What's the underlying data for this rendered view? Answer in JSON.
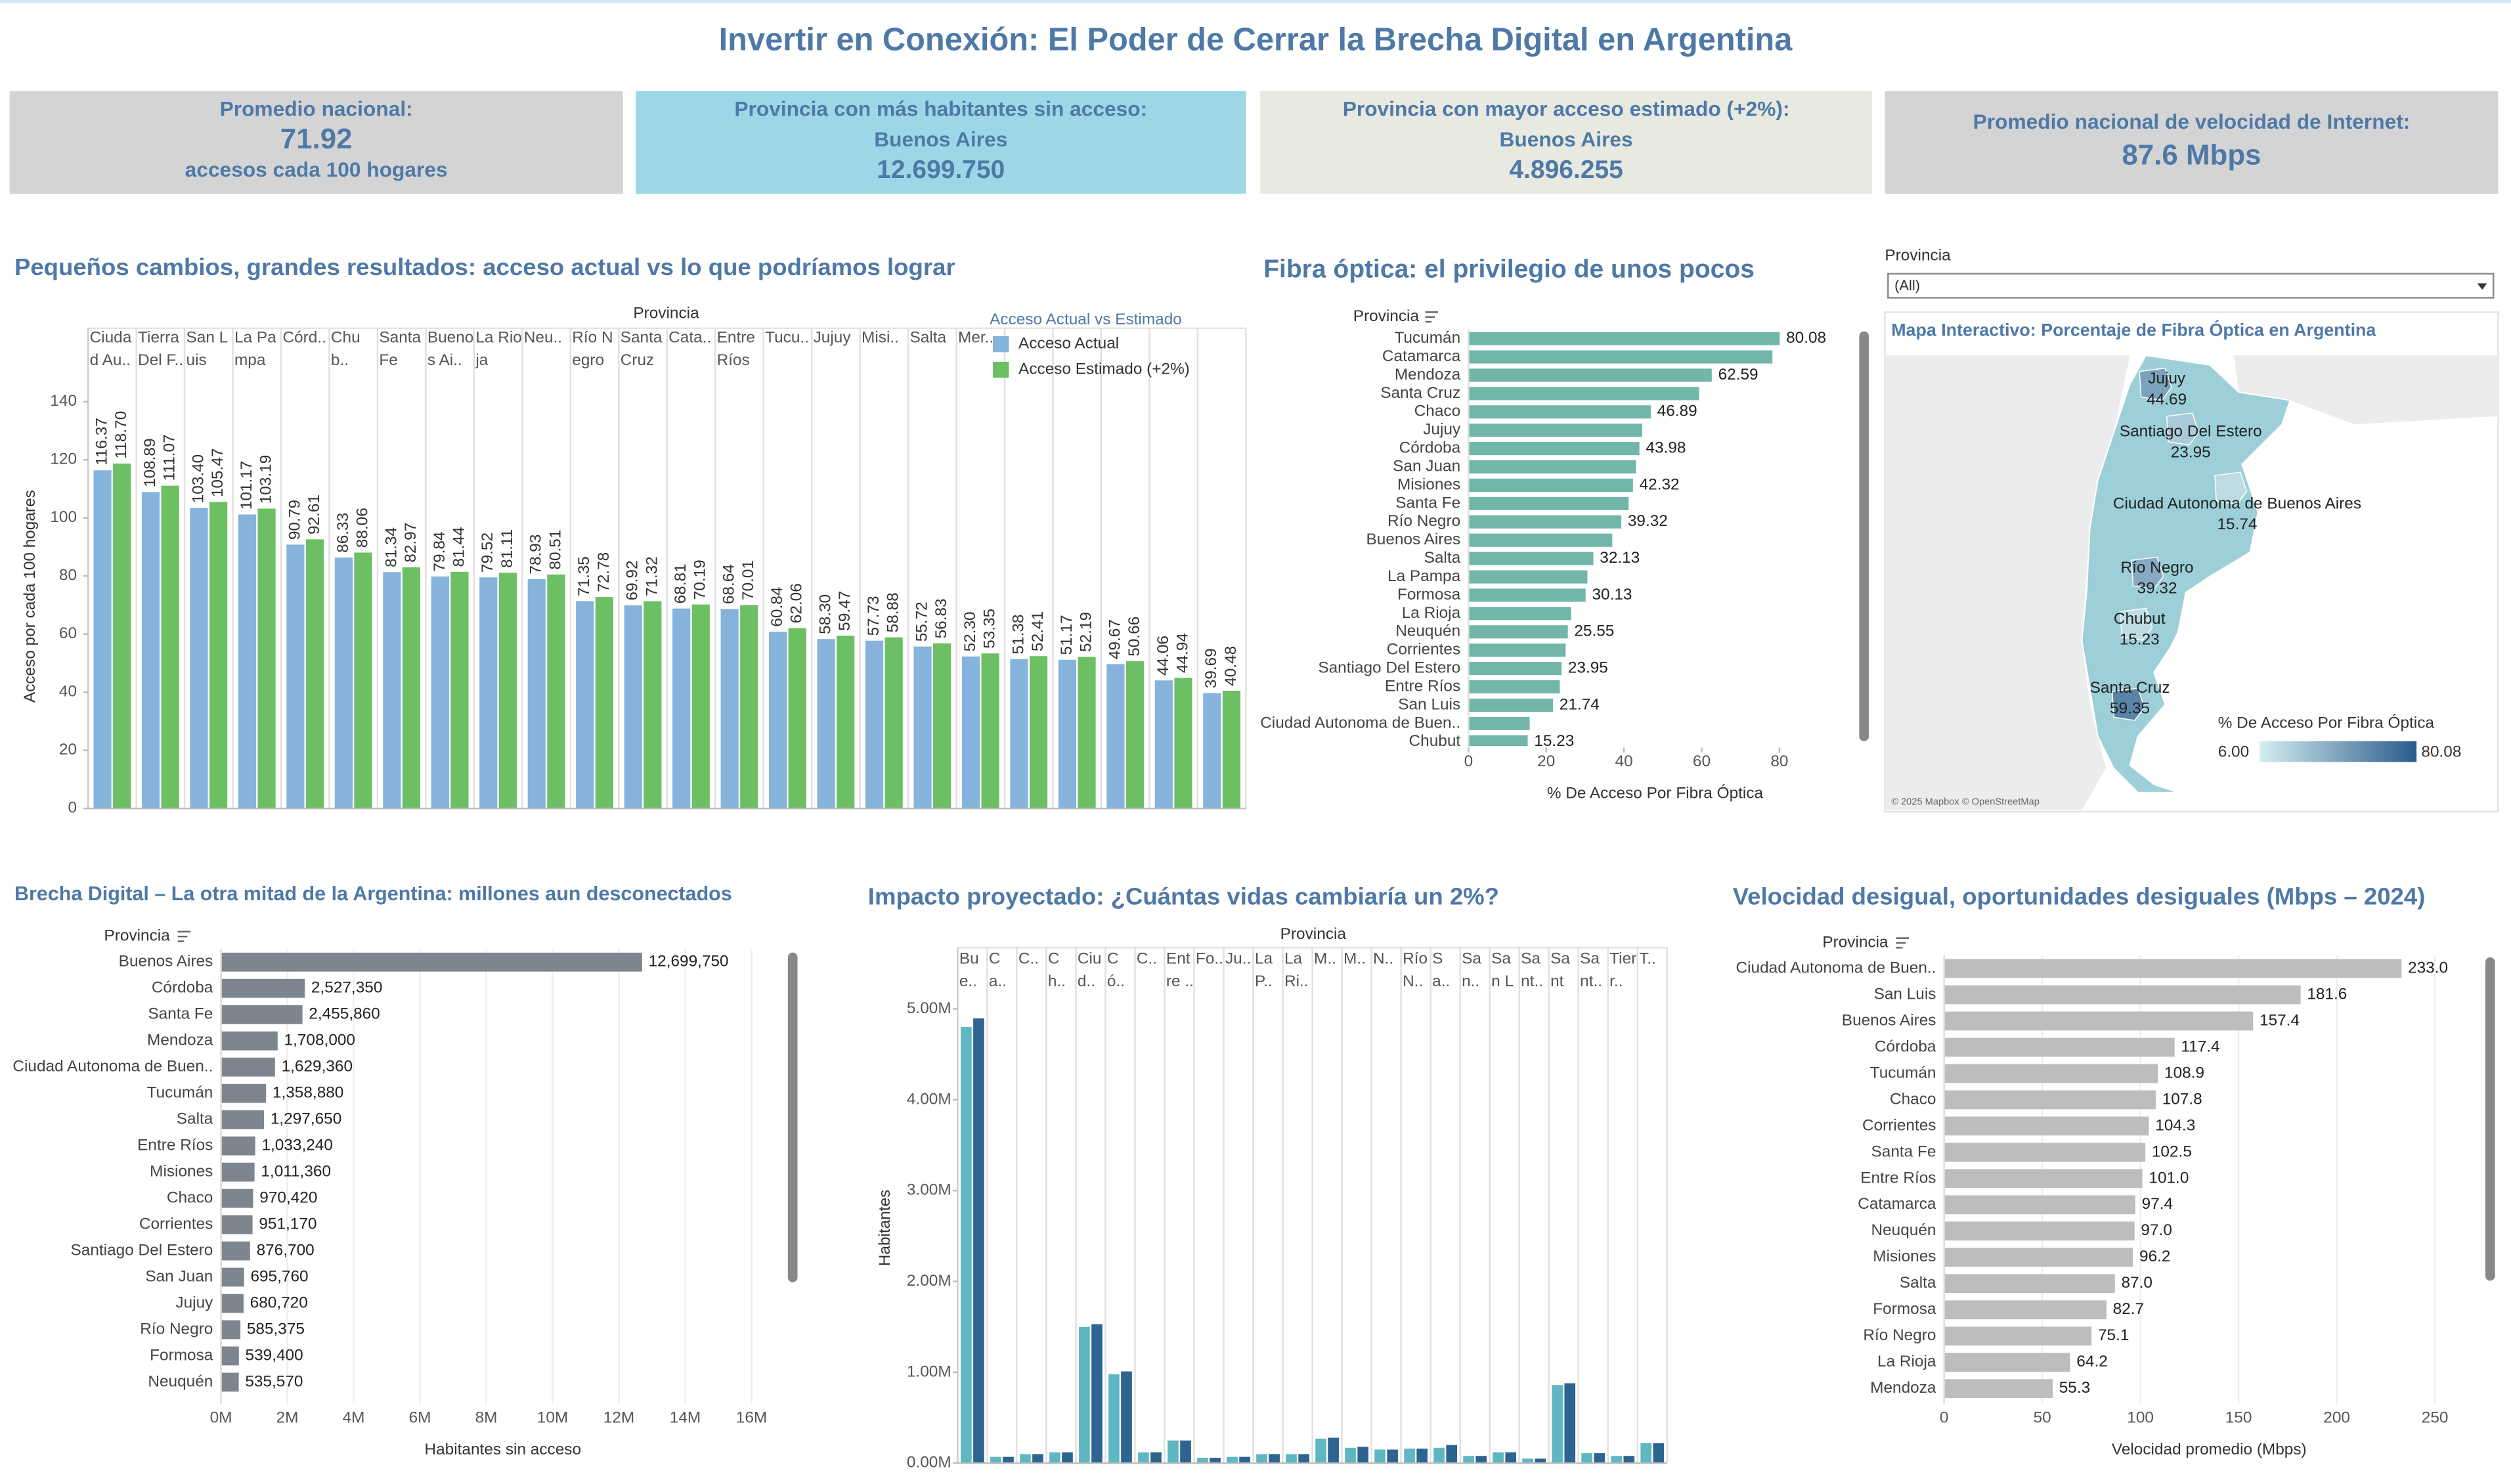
{
  "header": {
    "title": "Invertir en Conexión: El Poder de Cerrar la Brecha Digital en Argentina"
  },
  "kpis": [
    {
      "label": "Promedio nacional:",
      "value": "71.92",
      "note": "accesos cada 100 hogares"
    },
    {
      "label": "Provincia con más habitantes sin acceso:",
      "name": "Buenos Aires",
      "value": "12.699.750"
    },
    {
      "label": "Provincia con mayor acceso estimado (+2%):",
      "name": "Buenos Aires",
      "value": "4.896.255"
    },
    {
      "label": "Promedio nacional de velocidad de Internet:",
      "value": "87.6 Mbps"
    }
  ],
  "filter": {
    "label": "Provincia",
    "value": "(All)"
  },
  "chart_data": [
    {
      "type": "grouped_bar",
      "title": "Pequeños cambios, grandes resultados: acceso actual vs lo que podríamos lograr",
      "header": "Provincia",
      "ylabel": "Acceso por cada 100 hogares",
      "legend_title": "Acceso Actual vs Estimado",
      "categories": [
        "Ciudad Au..",
        "Tierra Del F..",
        "San Luis",
        "La Pampa",
        "Córd..",
        "Chub..",
        "Santa Fe",
        "Buenos Ai..",
        "La Rioja",
        "Neu..",
        "Río Negro",
        "Santa Cruz",
        "Cata..",
        "Entre Ríos",
        "Tucu..",
        "Jujuy",
        "Misi..",
        "Salta",
        "Mer..",
        null,
        null,
        null,
        null,
        null
      ],
      "series": [
        {
          "name": "Acceso Actual",
          "color": "#85b3dc",
          "values": [
            116.37,
            108.89,
            103.4,
            101.17,
            90.79,
            86.33,
            81.34,
            79.84,
            79.52,
            78.93,
            71.35,
            69.92,
            68.81,
            68.64,
            60.84,
            58.3,
            57.73,
            55.72,
            52.3,
            51.38,
            51.17,
            49.67,
            44.06,
            39.69
          ],
          "value_labels": [
            "116.37",
            "108.89",
            "103.40",
            "101.17",
            "90.79",
            "86.33",
            "81.34",
            "79.84",
            "79.52",
            "78.93",
            "71.35",
            "69.92",
            "68.81",
            "68.64",
            "60.84",
            "58.30",
            "57.73",
            "55.72",
            "52.30",
            "51.38",
            "51.17",
            "49.67",
            "44.06",
            "39.69"
          ]
        },
        {
          "name": "Acceso Estimado (+2%)",
          "color": "#6cbf63",
          "values": [
            118.7,
            111.07,
            105.47,
            103.19,
            92.61,
            88.06,
            82.97,
            81.44,
            81.11,
            80.51,
            72.78,
            71.32,
            70.19,
            70.01,
            62.06,
            59.47,
            58.88,
            56.83,
            53.35,
            52.41,
            52.19,
            50.66,
            44.94,
            40.48
          ],
          "value_labels": [
            "118.70",
            "111.07",
            "105.47",
            "103.19",
            "92.61",
            "88.06",
            "82.97",
            "81.44",
            "81.11",
            "80.51",
            "72.78",
            "71.32",
            "70.19",
            "70.01",
            "62.06",
            "59.47",
            "58.88",
            "56.83",
            "53.35",
            "52.41",
            "52.19",
            "50.66",
            "44.94",
            "40.48"
          ]
        }
      ],
      "ylim": [
        0,
        146
      ],
      "yticks": [
        0,
        20,
        40,
        60,
        80,
        100,
        120,
        140
      ],
      "grid": false
    },
    {
      "type": "bar",
      "orientation": "horizontal",
      "title": "Fibra óptica: el privilegio de unos pocos",
      "header": "Provincia",
      "xlabel": "% De Acceso Por Fibra Óptica",
      "color": "#72b6a9",
      "categories": [
        "Tucumán",
        "Catamarca",
        "Mendoza",
        "Santa Cruz",
        "Chaco",
        "Jujuy",
        "Córdoba",
        "San Juan",
        "Misiones",
        "Santa Fe",
        "Río Negro",
        "Buenos Aires",
        "Salta",
        "La Pampa",
        "Formosa",
        "La Rioja",
        "Neuquén",
        "Corrientes",
        "Santiago Del Estero",
        "Entre Ríos",
        "San Luis",
        "Ciudad Autonoma de Buen..",
        "Chubut"
      ],
      "values": [
        80.08,
        78.2,
        62.59,
        59.35,
        46.89,
        44.69,
        43.98,
        43.1,
        42.32,
        41.2,
        39.32,
        37.0,
        32.13,
        30.6,
        30.13,
        26.4,
        25.55,
        25.0,
        23.95,
        23.5,
        21.74,
        15.74,
        15.23
      ],
      "value_labels": [
        "80.08",
        null,
        "62.59",
        null,
        "46.89",
        null,
        "43.98",
        null,
        "42.32",
        null,
        "39.32",
        null,
        "32.13",
        null,
        "30.13",
        null,
        "25.55",
        null,
        "23.95",
        null,
        "21.74",
        null,
        "15.23"
      ],
      "xlim": [
        0,
        96
      ],
      "xticks": [
        0,
        20,
        40,
        60,
        80
      ],
      "grid": false
    },
    {
      "type": "bar",
      "orientation": "horizontal",
      "title": "Brecha Digital – La otra mitad de la Argentina: millones aun desconectados",
      "header": "Provincia",
      "xlabel": "Habitantes sin acceso",
      "color": "#7d858e",
      "categories": [
        "Buenos Aires",
        "Córdoba",
        "Santa Fe",
        "Mendoza",
        "Ciudad Autonoma de Buen..",
        "Tucumán",
        "Salta",
        "Entre Ríos",
        "Misiones",
        "Chaco",
        "Corrientes",
        "Santiago Del Estero",
        "San Juan",
        "Jujuy",
        "Río Negro",
        "Formosa",
        "Neuquén"
      ],
      "values": [
        12699750,
        2527350,
        2455860,
        1708000,
        1629360,
        1358880,
        1297650,
        1033240,
        1011360,
        970420,
        951170,
        876700,
        695760,
        680720,
        585375,
        539400,
        535570
      ],
      "value_labels": [
        "12,699,750",
        "2,527,350",
        "2,455,860",
        "1,708,000",
        "1,629,360",
        "1,358,880",
        "1,297,650",
        "1,033,240",
        "1,011,360",
        "970,420",
        "951,170",
        "876,700",
        "695,760",
        "680,720",
        "585,375",
        "539,400",
        "535,570"
      ],
      "xlim": [
        0,
        17000000
      ],
      "xticks": [
        {
          "value": 0,
          "label": "0M"
        },
        {
          "value": 2000000,
          "label": "2M"
        },
        {
          "value": 4000000,
          "label": "4M"
        },
        {
          "value": 6000000,
          "label": "6M"
        },
        {
          "value": 8000000,
          "label": "8M"
        },
        {
          "value": 10000000,
          "label": "10M"
        },
        {
          "value": 12000000,
          "label": "12M"
        },
        {
          "value": 14000000,
          "label": "14M"
        },
        {
          "value": 16000000,
          "label": "16M"
        }
      ],
      "grid": true
    },
    {
      "type": "grouped_bar",
      "title": "Impacto proyectado: ¿Cuántas vidas cambiaría un 2%?",
      "header": "Provincia",
      "ylabel": "Habitantes",
      "categories": [
        "Bue..",
        "Ca..",
        "C..",
        "Ch..",
        "Ciud..",
        "Có..",
        "C..",
        "Entre ..",
        "Fo..",
        "Ju..",
        "La P..",
        "La Ri..",
        "M..",
        "M..",
        "N..",
        "Río N..",
        "Sa..",
        "San..",
        "San Lu..",
        "Sant..",
        "Santa..",
        "Sant..",
        "Tierr..",
        "T.."
      ],
      "series": [
        {
          "color": "#5fb7c2",
          "values": [
            4800000,
            70000,
            100000,
            120000,
            1500000,
            980000,
            120000,
            250000,
            60000,
            70000,
            100000,
            100000,
            270000,
            170000,
            150000,
            160000,
            170000,
            80000,
            120000,
            50000,
            860000,
            110000,
            80000,
            220000
          ]
        },
        {
          "color": "#2d6491",
          "values": [
            4896255,
            70000,
            100000,
            120000,
            1530000,
            1010000,
            120000,
            250000,
            60000,
            70000,
            100000,
            100000,
            280000,
            180000,
            150000,
            160000,
            200000,
            80000,
            120000,
            50000,
            880000,
            110000,
            80000,
            220000
          ]
        }
      ],
      "ylim": [
        0,
        5180000
      ],
      "yticks": [
        {
          "value": 0,
          "label": "0.00M"
        },
        {
          "value": 1000000,
          "label": "1.00M"
        },
        {
          "value": 2000000,
          "label": "2.00M"
        },
        {
          "value": 3000000,
          "label": "3.00M"
        },
        {
          "value": 4000000,
          "label": "4.00M"
        },
        {
          "value": 5000000,
          "label": "5.00M"
        }
      ],
      "grid": false
    },
    {
      "type": "bar",
      "orientation": "horizontal",
      "title": "Velocidad desigual, oportunidades desiguales (Mbps – 2024)",
      "header": "Provincia",
      "xlabel": "Velocidad promedio (Mbps)",
      "color": "#bdbdbd",
      "categories": [
        "Ciudad Autonoma de Buen..",
        "San Luis",
        "Buenos Aires",
        "Córdoba",
        "Tucumán",
        "Chaco",
        "Corrientes",
        "Santa Fe",
        "Entre Ríos",
        "Catamarca",
        "Neuquén",
        "Misiones",
        "Salta",
        "Formosa",
        "Río Negro",
        "La Rioja",
        "Mendoza"
      ],
      "values": [
        233.0,
        181.6,
        157.4,
        117.4,
        108.9,
        107.8,
        104.3,
        102.5,
        101.0,
        97.4,
        97.0,
        96.2,
        87.0,
        82.7,
        75.1,
        64.2,
        55.3
      ],
      "value_labels": [
        "233.0",
        "181.6",
        "157.4",
        "117.4",
        "108.9",
        "107.8",
        "104.3",
        "102.5",
        "101.0",
        "97.4",
        "97.0",
        "96.2",
        "87.0",
        "82.7",
        "75.1",
        "64.2",
        "55.3"
      ],
      "xlim": [
        0,
        270
      ],
      "xticks": [
        0,
        50,
        100,
        150,
        200,
        250
      ],
      "grid": true
    }
  ],
  "map": {
    "title": "Mapa Interactivo: Porcentaje de  Fibra Óptica en Argentina",
    "regions": [
      {
        "name": "Jujuy",
        "value": 44.69
      },
      {
        "name": "Santiago Del Estero",
        "value": 23.95
      },
      {
        "name": "Ciudad Autonoma de Buenos Aires",
        "value": 15.74
      },
      {
        "name": "Río Negro",
        "value": 39.32
      },
      {
        "name": "Chubut",
        "value": 15.23
      },
      {
        "name": "Santa Cruz",
        "value": 59.35
      }
    ],
    "legend": {
      "title": "% De Acceso Por Fibra Óptica",
      "min": {
        "value": 6,
        "label": "6.00"
      },
      "max": 80.08
    },
    "attribution": "© 2025 Mapbox © OpenStreetMap"
  }
}
